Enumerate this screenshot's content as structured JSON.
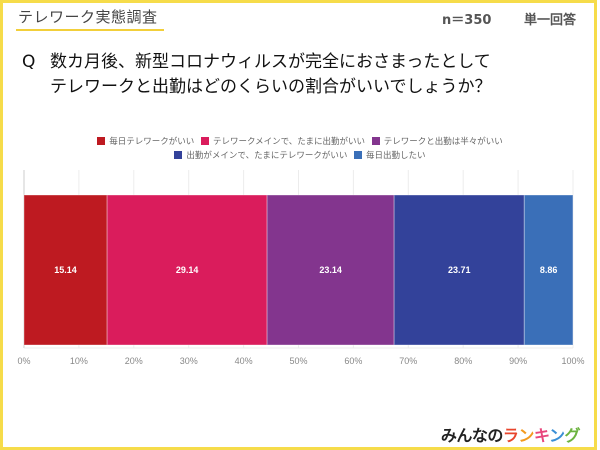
{
  "header": {
    "survey_title": "テレワーク実態調査",
    "sample_size": "n＝350",
    "answer_type": "単一回答"
  },
  "question": {
    "marker": "Q",
    "line1": "数カ月後、新型コロナウィルスが完全におさまったとして",
    "line2": "テレワークと出勤はどのくらいの割合がいいでしょうか？"
  },
  "logo": {
    "base_text": "みんなの",
    "accent_chars": [
      {
        "char": "ラ",
        "color": "#e8452c"
      },
      {
        "char": "ン",
        "color": "#f39a1e"
      },
      {
        "char": "キ",
        "color": "#e8467c"
      },
      {
        "char": "ン",
        "color": "#3a8fd6"
      },
      {
        "char": "グ",
        "color": "#6cb33f"
      }
    ]
  },
  "chart_data": {
    "type": "bar",
    "orientation": "horizontal-stacked-100",
    "title": "",
    "xlabel": "",
    "ylabel": "",
    "xlim": [
      0,
      100
    ],
    "x_ticks": [
      "0%",
      "10%",
      "20%",
      "30%",
      "40%",
      "50%",
      "60%",
      "70%",
      "80%",
      "90%",
      "100%"
    ],
    "grid": true,
    "legend_position": "top-center",
    "categories": [
      ""
    ],
    "series": [
      {
        "name": "毎日テレワークがいい",
        "values": [
          15.14
        ],
        "color": "#be1a21"
      },
      {
        "name": "テレワークメインで、たまに出勤がいい",
        "values": [
          29.14
        ],
        "color": "#da1c5c"
      },
      {
        "name": "テレワークと出勤は半々がいい",
        "values": [
          23.14
        ],
        "color": "#83358e"
      },
      {
        "name": "出勤がメインで、たまにテレワークがいい",
        "values": [
          23.71
        ],
        "color": "#33429a"
      },
      {
        "name": "毎日出勤したい",
        "values": [
          8.86
        ],
        "color": "#3a6fb8"
      }
    ]
  }
}
